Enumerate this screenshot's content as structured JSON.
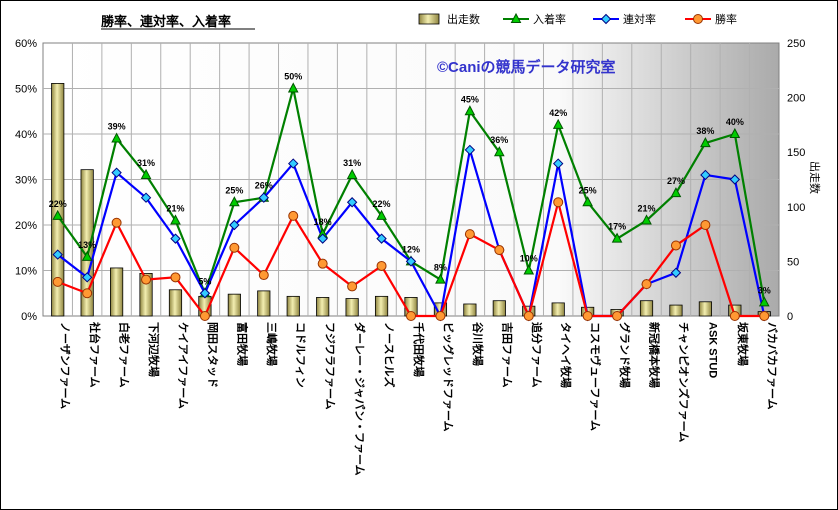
{
  "chart_data": {
    "type": "bar-line-combo",
    "title": "勝率、連対率、入着率",
    "watermark": "©Caniの競馬データ研究室",
    "ylabel_right": "出走数",
    "ylim_left": [
      0,
      60
    ],
    "ylim_right": [
      0,
      250
    ],
    "yticks_left": [
      "0%",
      "10%",
      "20%",
      "30%",
      "40%",
      "50%",
      "60%"
    ],
    "yticks_right": [
      "0",
      "50",
      "100",
      "150",
      "200",
      "250"
    ],
    "grid": true,
    "legend_position": "top",
    "categories": [
      "ノーザンファーム",
      "社台ファーム",
      "白老ファーム",
      "下河辺牧場",
      "ケイアイファーム",
      "岡田スタッド",
      "富田牧場",
      "三嶋牧場",
      "コドルフィン",
      "フジワラファーム",
      "ダーレー・ジャパン・ファーム",
      "ノースヒルズ",
      "千代田牧場",
      "ビッグレッドファーム",
      "谷川牧場",
      "吉田ファーム",
      "追分ファーム",
      "タイヘイ牧場",
      "コスモヴューファーム",
      "グランド牧場",
      "新冠橋本牧場",
      "チャンピオンズファーム",
      "ASK STUD",
      "坂東牧場",
      "バカバカファーム"
    ],
    "series": [
      {
        "name": "出走数",
        "kind": "bar",
        "axis": "right",
        "color": "#d8cf7a",
        "values": [
          213,
          134,
          44,
          39,
          24,
          18,
          20,
          23,
          18,
          17,
          16,
          18,
          17,
          12,
          11,
          14,
          9,
          12,
          8,
          6,
          14,
          10,
          13,
          10,
          4
        ]
      },
      {
        "name": "入着率",
        "kind": "line",
        "axis": "left",
        "color": "#008000",
        "values": [
          22,
          13,
          39,
          31,
          21,
          5,
          25,
          26,
          50,
          18,
          31,
          22,
          12,
          8,
          45,
          36,
          10,
          42,
          25,
          17,
          21,
          27,
          38,
          40,
          3
        ],
        "labels": [
          "22%",
          "13%",
          "39%",
          "31%",
          "21%",
          "5%",
          "25%",
          "26%",
          "50%",
          "18%",
          "31%",
          "22%",
          "12%",
          "8%",
          "45%",
          "36%",
          "10%",
          "42%",
          "25%",
          "17%",
          "21%",
          "27%",
          "38%",
          "40%",
          "3%"
        ]
      },
      {
        "name": "連対率",
        "kind": "line",
        "axis": "left",
        "color": "#0000ff",
        "values": [
          13.5,
          8.5,
          31.5,
          26,
          17,
          5,
          20,
          26,
          33.5,
          17,
          25,
          17,
          12,
          0,
          36.5,
          14.5,
          0,
          33.5,
          0,
          0,
          7,
          9.5,
          31,
          30,
          0
        ]
      },
      {
        "name": "勝率",
        "kind": "line",
        "axis": "left",
        "color": "#ff0000",
        "values": [
          7.5,
          5,
          20.5,
          8,
          8.5,
          0,
          15,
          9,
          22,
          11.5,
          6.5,
          11,
          0,
          0,
          18,
          14.5,
          0,
          25,
          0,
          0,
          7,
          15.5,
          20,
          0,
          0
        ]
      }
    ]
  }
}
